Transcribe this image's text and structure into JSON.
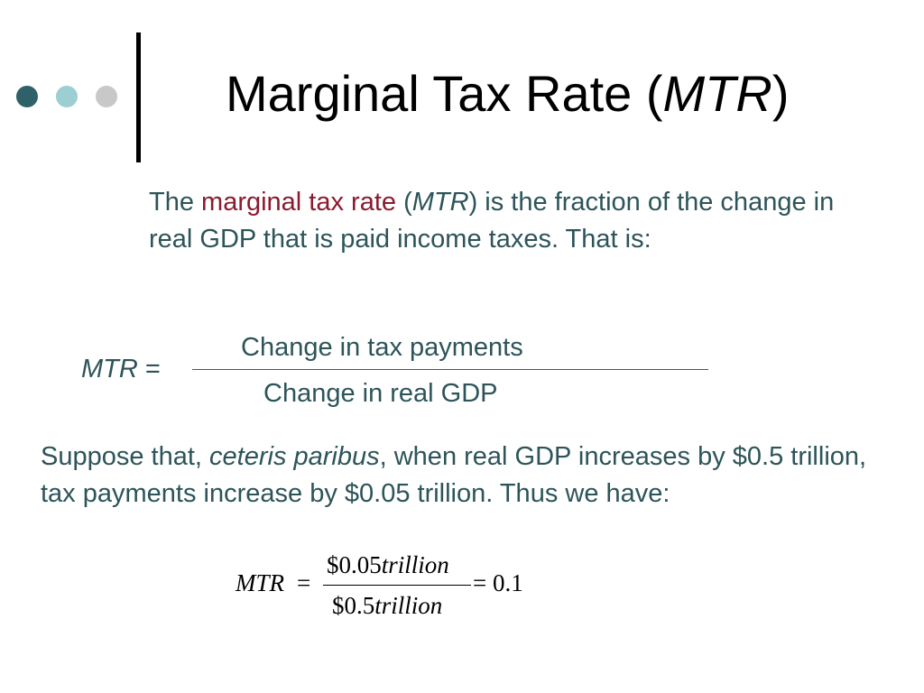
{
  "title": {
    "prefix": "Marginal Tax Rate (",
    "abbr": "MTR",
    "suffix": ")"
  },
  "intro": {
    "part1": "The ",
    "term": "marginal tax rate",
    "part2": " (",
    "abbr": "MTR",
    "part3": ") is the fraction of the change in real GDP that is paid income taxes. That is:"
  },
  "formula1": {
    "lhs_abbr": "MTR",
    "lhs_eq": " =",
    "numerator": "Change in tax payments",
    "denominator": "Change in real GDP"
  },
  "example": {
    "part1": "Suppose that, ",
    "italic": "ceteris paribus",
    "part2": ", when real GDP increases by $0.5 trillion, tax payments increase by $0.05 trillion. Thus we have:"
  },
  "formula2": {
    "lhs": "MTR",
    "eq": "=",
    "num_value": "$0.05",
    "num_unit": "trillion",
    "den_value": "$0.5",
    "den_unit": "trillion",
    "result": "= 0.1"
  },
  "colors": {
    "text": "#2c5459",
    "term": "#8b1a2e",
    "dot_dark": "#2f6168",
    "dot_light": "#9ccfd2",
    "dot_gray": "#c8c8c8"
  }
}
